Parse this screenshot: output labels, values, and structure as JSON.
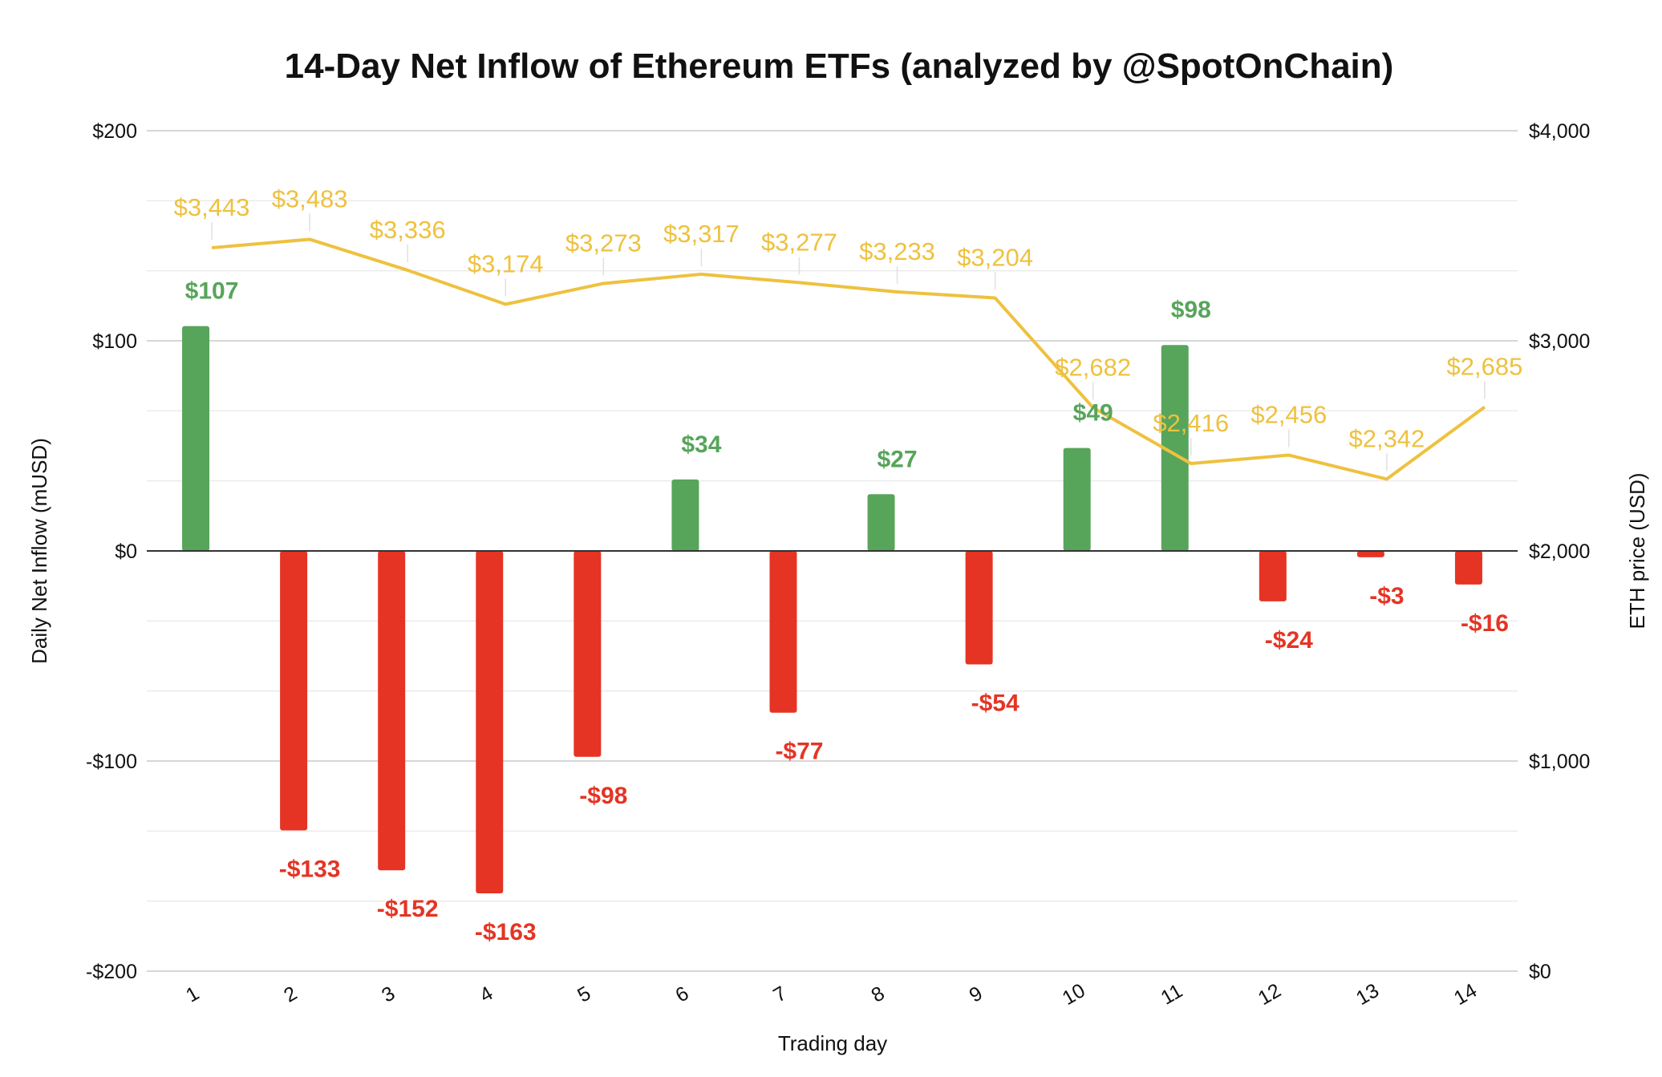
{
  "chart_data": {
    "type": "bar",
    "title": "14-Day Net Inflow of Ethereum ETFs (analyzed by @SpotOnChain)",
    "xlabel": "Trading day",
    "ylabel": "Daily Net Inflow (mUSD)",
    "y2label": "ETH price (USD)",
    "categories": [
      "1",
      "2",
      "3",
      "4",
      "5",
      "6",
      "7",
      "8",
      "9",
      "10",
      "11",
      "12",
      "13",
      "14"
    ],
    "ylim": [
      -200,
      200
    ],
    "y_ticks": [
      -200,
      -100,
      0,
      100,
      200
    ],
    "y_tick_labels": [
      "-$200",
      "-$100",
      "$0",
      "$100",
      "$200"
    ],
    "y2lim": [
      0,
      4000
    ],
    "y2_ticks": [
      0,
      1000,
      2000,
      3000,
      4000
    ],
    "y2_tick_labels": [
      "$0",
      "$1,000",
      "$2,000",
      "$3,000",
      "$4,000"
    ],
    "grid": true,
    "legend": "none",
    "series": [
      {
        "type": "bar",
        "axis": "left",
        "values": [
          107,
          -133,
          -152,
          -163,
          -98,
          34,
          -77,
          27,
          -54,
          49,
          98,
          -24,
          -3,
          -16
        ],
        "labels": [
          "$107",
          "-$133",
          "-$152",
          "-$163",
          "-$98",
          "$34",
          "-$77",
          "$27",
          "-$54",
          "$49",
          "$98",
          "-$24",
          "-$3",
          "-$16"
        ],
        "positive_color": "#57a55a",
        "negative_color": "#e53424"
      },
      {
        "type": "line",
        "axis": "right",
        "values": [
          3443,
          3483,
          3336,
          3174,
          3273,
          3317,
          3277,
          3233,
          3204,
          2682,
          2416,
          2456,
          2342,
          2685
        ],
        "labels": [
          "$3,443",
          "$3,483",
          "$3,336",
          "$3,174",
          "$3,273",
          "$3,317",
          "$3,277",
          "$3,233",
          "$3,204",
          "$2,682",
          "$2,416",
          "$2,456",
          "$2,342",
          "$2,685"
        ],
        "color": "#eec13f"
      }
    ]
  }
}
